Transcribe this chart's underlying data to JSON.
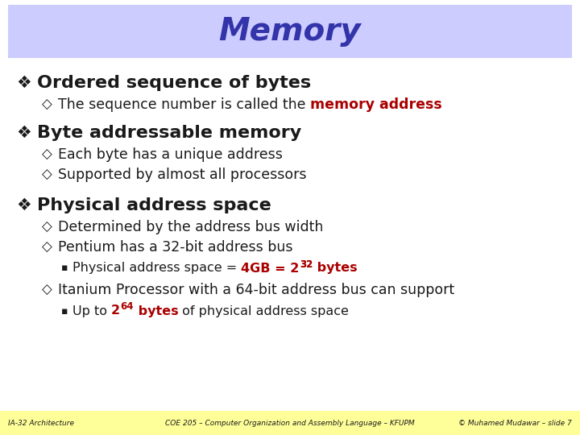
{
  "title": "Memory",
  "title_color": "#3333aa",
  "title_bg_color": "#ccccff",
  "bg_color": "#ffffff",
  "footer_bg_color": "#ffff99",
  "footer_left": "IA-32 Architecture",
  "footer_center": "COE 205 – Computer Organization and Assembly Language – KFUPM",
  "footer_right": "© Muhamed Mudawar – slide 7",
  "red_color": "#aa0000",
  "dark_color": "#1a1a1a",
  "sub1_1_pre": "The sequence number is called the ",
  "sub1_1_red": "memory address",
  "bullet1_text": "Ordered sequence of bytes",
  "bullet2_text": "Byte addressable memory",
  "sub2_1": "Each byte has a unique address",
  "sub2_2": "Supported by almost all processors",
  "bullet3_text": "Physical address space",
  "sub3_1": "Determined by the address bus width",
  "sub3_2": "Pentium has a 32-bit address bus",
  "sub3_2b_pre": "Physical address space = ",
  "sub3_2b_red": "4GB = 2",
  "sub3_2b_sup": "32",
  "sub3_2b_post": " bytes",
  "sub3_3": "Itanium Processor with a 64-bit address bus can support",
  "sub3_3b_pre": "Up to ",
  "sub3_3b_red1": "2",
  "sub3_3b_sup": "64",
  "sub3_3b_red2": " bytes",
  "sub3_3b_post": " of physical address space"
}
